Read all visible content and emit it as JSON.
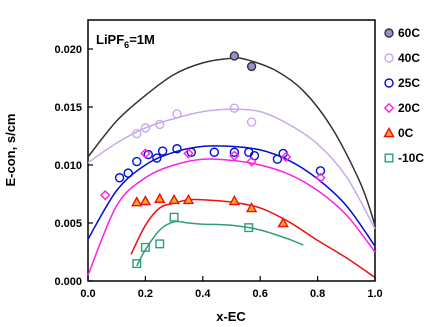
{
  "chart_data": {
    "type": "scatter",
    "annotation": {
      "base": "LiPF",
      "sub": "6",
      "rest": "=1M"
    },
    "xlabel": "x-EC",
    "ylabel": "E-con, s/cm",
    "xlim": [
      0,
      1
    ],
    "ylim": [
      0,
      0.0225
    ],
    "xticks": [
      0.0,
      0.2,
      0.4,
      0.6,
      0.8,
      1.0
    ],
    "xtick_labels": [
      "0.0",
      "0.2",
      "0.4",
      "0.6",
      "0.8",
      "1.0"
    ],
    "yticks": [
      0.0,
      0.005,
      0.01,
      0.015,
      0.02
    ],
    "ytick_labels": [
      "0.000",
      "0.005",
      "0.010",
      "0.015",
      "0.020"
    ],
    "legend_position": "right",
    "series": [
      {
        "name": "60C",
        "color": "#333333",
        "marker": "circle",
        "marker_fill": "#9b8fd1",
        "points": [
          [
            0.51,
            0.0194
          ],
          [
            0.57,
            0.0185
          ]
        ],
        "curve": [
          [
            0.0,
            0.0107
          ],
          [
            0.1,
            0.0138
          ],
          [
            0.2,
            0.016
          ],
          [
            0.3,
            0.0178
          ],
          [
            0.4,
            0.0188
          ],
          [
            0.5,
            0.0192
          ],
          [
            0.55,
            0.0191
          ],
          [
            0.65,
            0.0182
          ],
          [
            0.75,
            0.0164
          ],
          [
            0.85,
            0.0132
          ],
          [
            0.95,
            0.0084
          ],
          [
            1.0,
            0.0048
          ]
        ]
      },
      {
        "name": "40C",
        "color": "#c9a8ef",
        "marker": "circle",
        "marker_fill": "none",
        "points": [
          [
            0.17,
            0.0127
          ],
          [
            0.2,
            0.0132
          ],
          [
            0.25,
            0.0135
          ],
          [
            0.31,
            0.0144
          ],
          [
            0.51,
            0.0149
          ],
          [
            0.57,
            0.0137
          ]
        ],
        "curve": [
          [
            0.0,
            0.0102
          ],
          [
            0.1,
            0.0119
          ],
          [
            0.2,
            0.0132
          ],
          [
            0.3,
            0.014
          ],
          [
            0.4,
            0.0146
          ],
          [
            0.5,
            0.0148
          ],
          [
            0.6,
            0.0146
          ],
          [
            0.7,
            0.0135
          ],
          [
            0.8,
            0.0118
          ],
          [
            0.9,
            0.009
          ],
          [
            1.0,
            0.0045
          ]
        ]
      },
      {
        "name": "25C",
        "color": "#0010d0",
        "marker": "circle",
        "marker_fill": "none",
        "points": [
          [
            0.11,
            0.0089
          ],
          [
            0.14,
            0.0093
          ],
          [
            0.17,
            0.0103
          ],
          [
            0.21,
            0.0109
          ],
          [
            0.24,
            0.0106
          ],
          [
            0.26,
            0.0112
          ],
          [
            0.31,
            0.0114
          ],
          [
            0.36,
            0.0111
          ],
          [
            0.44,
            0.0111
          ],
          [
            0.51,
            0.0111
          ],
          [
            0.56,
            0.0111
          ],
          [
            0.58,
            0.0108
          ],
          [
            0.66,
            0.0105
          ],
          [
            0.68,
            0.011
          ],
          [
            0.81,
            0.0095
          ]
        ],
        "curve": [
          [
            0.0,
            0.0036
          ],
          [
            0.1,
            0.0078
          ],
          [
            0.2,
            0.01
          ],
          [
            0.3,
            0.0111
          ],
          [
            0.4,
            0.0116
          ],
          [
            0.5,
            0.0116
          ],
          [
            0.6,
            0.0113
          ],
          [
            0.7,
            0.0104
          ],
          [
            0.8,
            0.0088
          ],
          [
            0.9,
            0.0065
          ],
          [
            1.0,
            0.003
          ]
        ]
      },
      {
        "name": "20C",
        "color": "#ff20e0",
        "marker": "diamond",
        "marker_fill": "none",
        "points": [
          [
            0.06,
            0.0074
          ],
          [
            0.2,
            0.011
          ],
          [
            0.35,
            0.011
          ],
          [
            0.51,
            0.0108
          ],
          [
            0.57,
            0.0103
          ],
          [
            0.69,
            0.0107
          ],
          [
            0.81,
            0.0089
          ]
        ],
        "curve": [
          [
            0.0,
            0.0005
          ],
          [
            0.1,
            0.0065
          ],
          [
            0.2,
            0.0089
          ],
          [
            0.3,
            0.01
          ],
          [
            0.4,
            0.0105
          ],
          [
            0.5,
            0.0104
          ],
          [
            0.6,
            0.01
          ],
          [
            0.7,
            0.0092
          ],
          [
            0.8,
            0.0078
          ],
          [
            0.9,
            0.0057
          ],
          [
            1.0,
            0.0025
          ]
        ]
      },
      {
        "name": "0C",
        "color": "#ee1010",
        "marker": "triangle",
        "marker_fill": "#f5a623",
        "points": [
          [
            0.17,
            0.0068
          ],
          [
            0.2,
            0.0069
          ],
          [
            0.25,
            0.0071
          ],
          [
            0.3,
            0.007
          ],
          [
            0.35,
            0.007
          ],
          [
            0.51,
            0.0069
          ],
          [
            0.57,
            0.0063
          ],
          [
            0.68,
            0.005
          ]
        ],
        "curve": [
          [
            0.15,
            0.0023
          ],
          [
            0.2,
            0.0048
          ],
          [
            0.25,
            0.0063
          ],
          [
            0.3,
            0.0067
          ],
          [
            0.35,
            0.007
          ],
          [
            0.4,
            0.007
          ],
          [
            0.5,
            0.0068
          ],
          [
            0.6,
            0.0063
          ],
          [
            0.7,
            0.0051
          ],
          [
            0.8,
            0.0035
          ],
          [
            0.9,
            0.002
          ],
          [
            1.0,
            0.0003
          ]
        ]
      },
      {
        "name": "-10C",
        "color": "#2e9e78",
        "marker": "square",
        "marker_fill": "none",
        "points": [
          [
            0.17,
            0.0015
          ],
          [
            0.2,
            0.0029
          ],
          [
            0.25,
            0.0032
          ],
          [
            0.3,
            0.0055
          ],
          [
            0.56,
            0.0046
          ]
        ],
        "curve": [
          [
            0.17,
            0.0013
          ],
          [
            0.2,
            0.0027
          ],
          [
            0.25,
            0.0044
          ],
          [
            0.3,
            0.0051
          ],
          [
            0.35,
            0.005
          ],
          [
            0.4,
            0.0049
          ],
          [
            0.5,
            0.0048
          ],
          [
            0.6,
            0.0044
          ],
          [
            0.7,
            0.0036
          ],
          [
            0.75,
            0.0031
          ]
        ]
      }
    ]
  }
}
